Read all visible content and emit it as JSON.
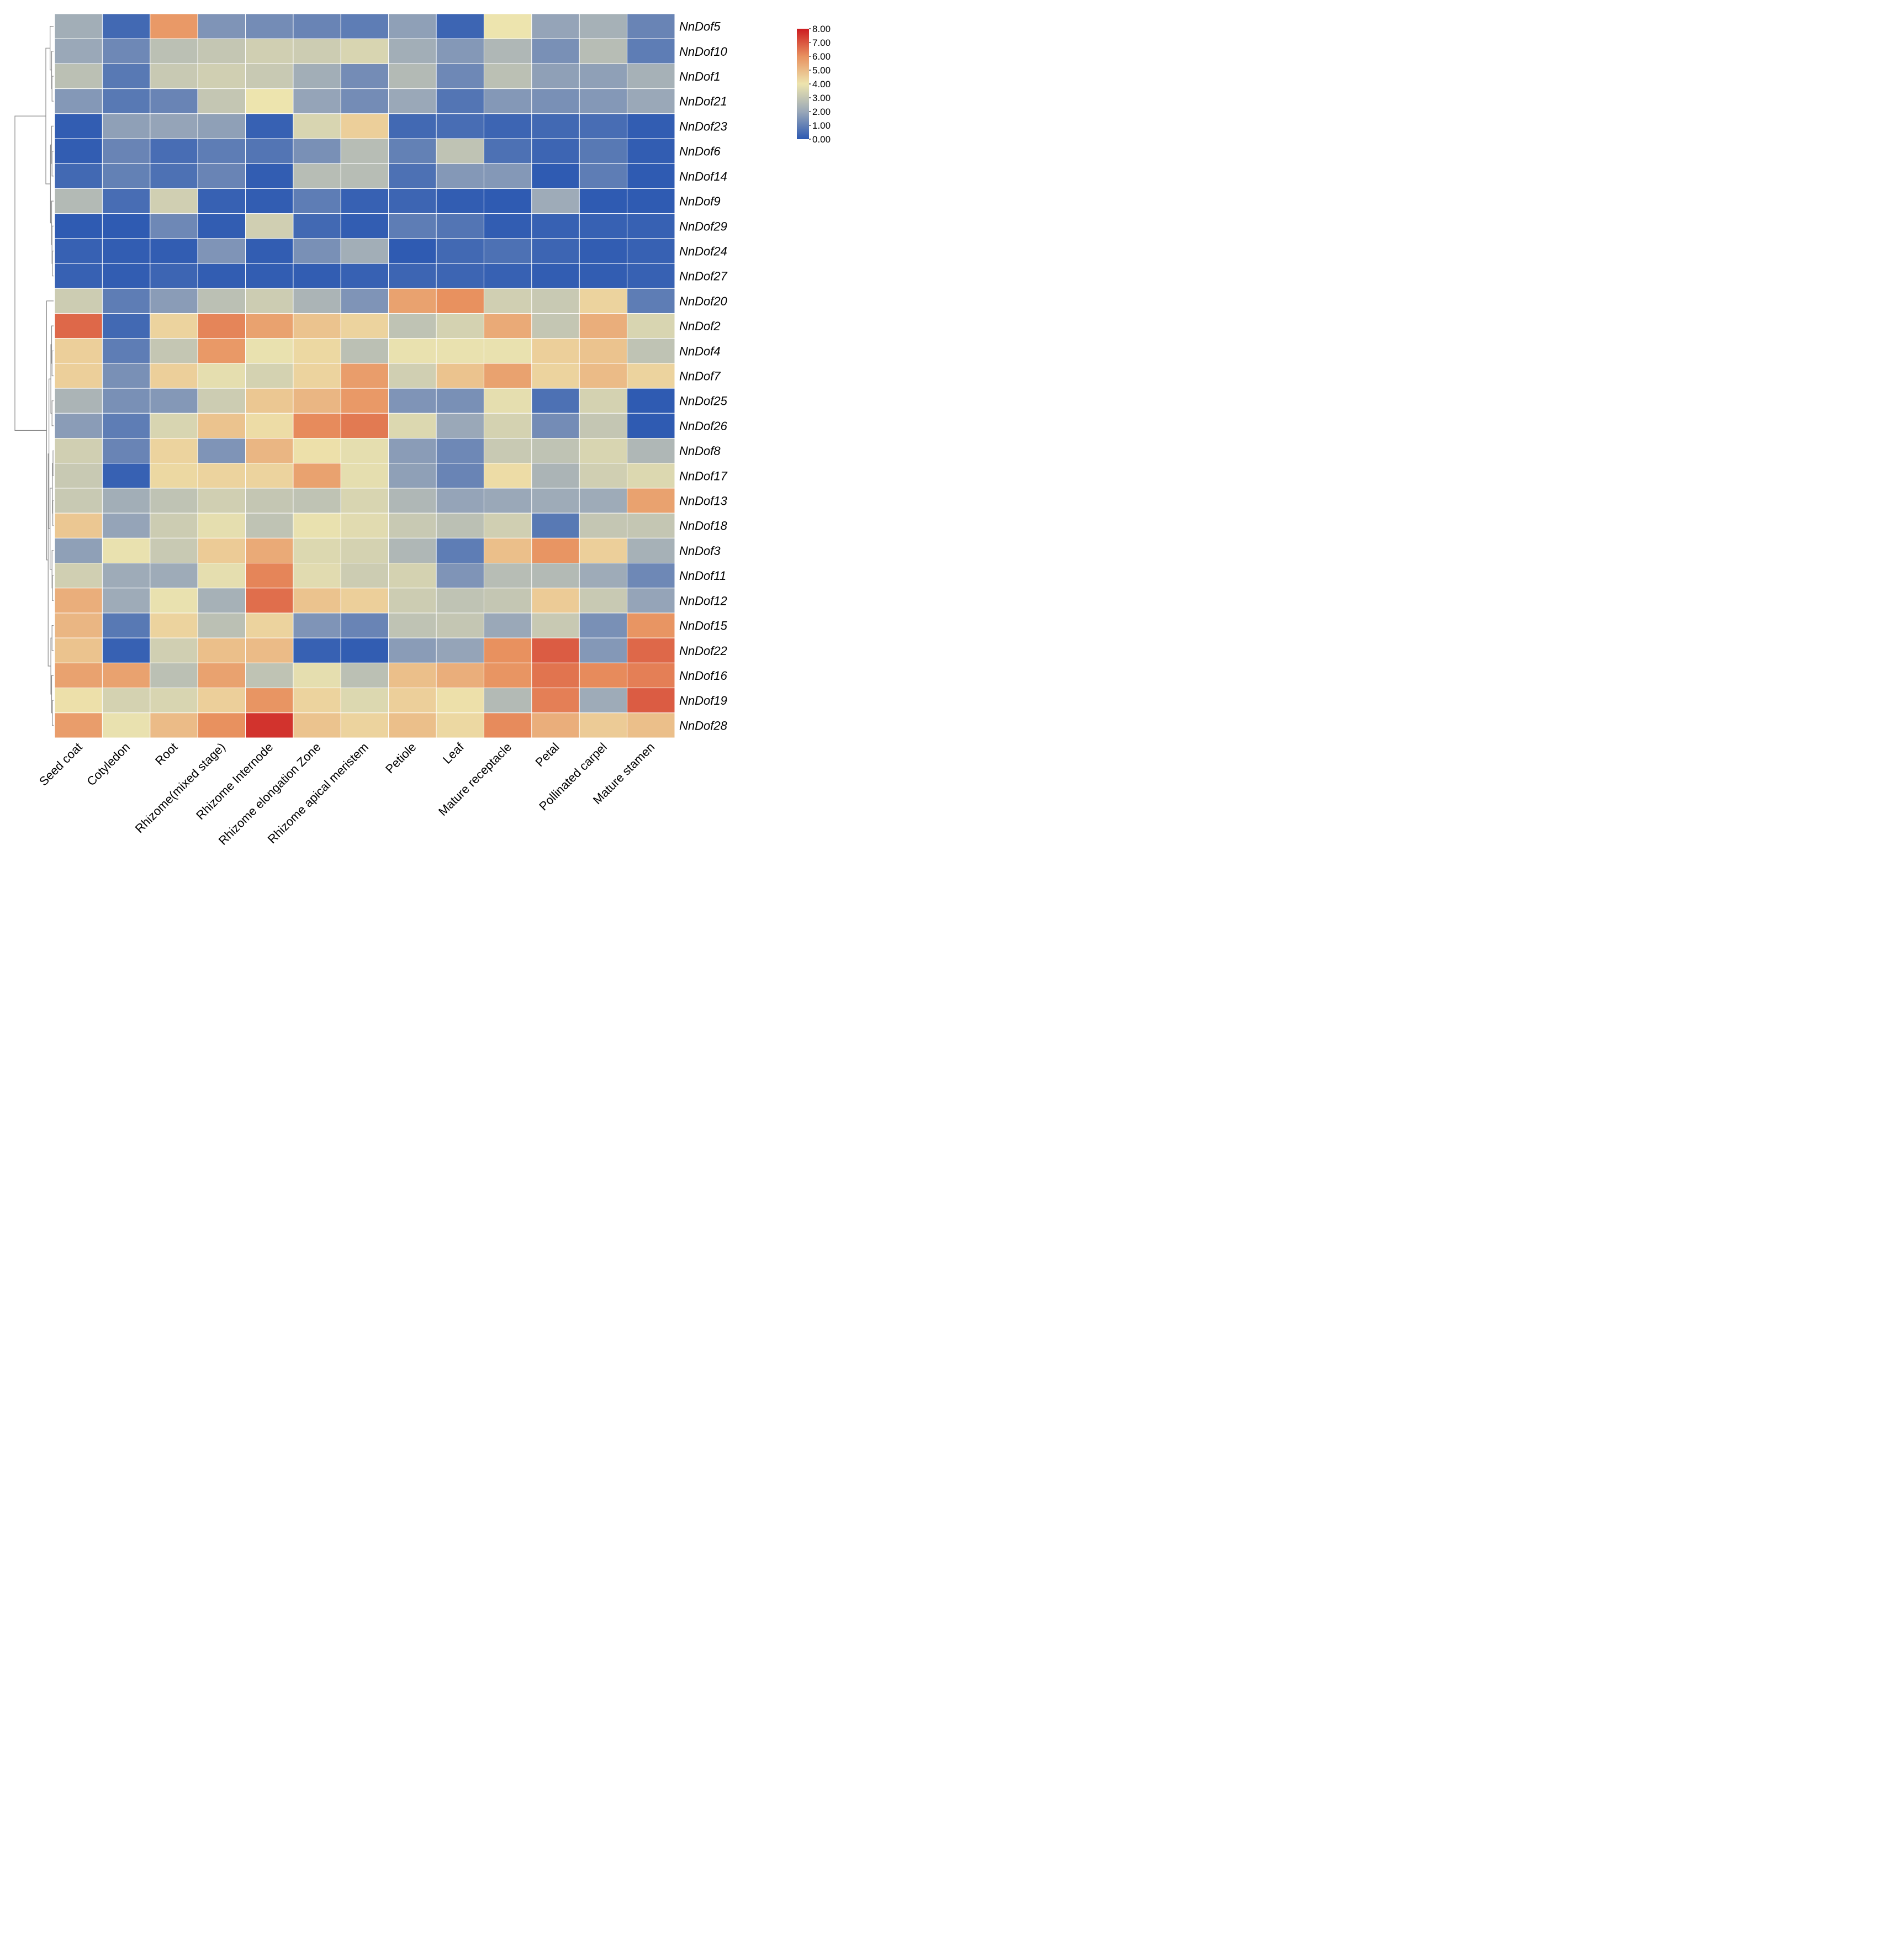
{
  "chart_data": {
    "type": "heatmap",
    "title": "",
    "columns": [
      "Seed coat",
      "Cotyledon",
      "Root",
      "Rhizome(mixed stage)",
      "Rhizome Internode",
      "Rhizome elongation Zone",
      "Rhizome apical meristem",
      "Petiole",
      "Leaf",
      "Mature receptacle",
      "Petal",
      "Pollinated carpel",
      "Mature stamen"
    ],
    "rows": [
      "NnDof5",
      "NnDof10",
      "NnDof1",
      "NnDof21",
      "NnDof23",
      "NnDof6",
      "NnDof14",
      "NnDof9",
      "NnDof29",
      "NnDof24",
      "NnDof27",
      "NnDof20",
      "NnDof2",
      "NnDof4",
      "NnDof7",
      "NnDof25",
      "NnDof26",
      "NnDof8",
      "NnDof17",
      "NnDof13",
      "NnDof18",
      "NnDof3",
      "NnDof11",
      "NnDof12",
      "NnDof15",
      "NnDof22",
      "NnDof16",
      "NnDof19",
      "NnDof28"
    ],
    "values": [
      [
        2.2,
        0.4,
        5.8,
        1.5,
        1.3,
        1.1,
        0.9,
        1.8,
        0.3,
        4.0,
        1.9,
        2.3,
        1.1
      ],
      [
        2.0,
        1.2,
        2.8,
        3.0,
        3.3,
        3.2,
        3.5,
        2.2,
        1.6,
        2.5,
        1.4,
        2.7,
        0.9
      ],
      [
        2.8,
        0.8,
        3.1,
        3.3,
        3.1,
        2.2,
        1.3,
        2.6,
        1.2,
        2.8,
        1.8,
        1.8,
        2.3
      ],
      [
        1.6,
        0.8,
        1.1,
        3.0,
        4.0,
        1.9,
        1.3,
        2.0,
        0.7,
        1.6,
        1.4,
        1.6,
        2.0
      ],
      [
        0.1,
        1.8,
        1.9,
        1.8,
        0.2,
        3.5,
        4.5,
        0.4,
        0.5,
        0.3,
        0.4,
        0.5,
        0.1
      ],
      [
        0.1,
        1.1,
        0.5,
        0.9,
        0.7,
        1.4,
        2.7,
        1.0,
        2.9,
        0.6,
        0.3,
        0.8,
        0.1
      ],
      [
        0.4,
        1.0,
        0.6,
        1.1,
        0.1,
        2.7,
        2.7,
        0.6,
        1.6,
        1.6,
        0.05,
        0.9,
        0.05
      ],
      [
        2.6,
        0.5,
        3.3,
        0.2,
        0.1,
        0.9,
        0.2,
        0.3,
        0.1,
        0.05,
        2.1,
        0.05,
        0.05
      ],
      [
        0.05,
        0.05,
        1.2,
        0.1,
        3.3,
        0.4,
        0.1,
        0.9,
        0.7,
        0.1,
        0.2,
        0.2,
        0.2
      ],
      [
        0.2,
        0.1,
        0.1,
        1.5,
        0.1,
        1.4,
        2.2,
        0.05,
        0.4,
        0.6,
        0.3,
        0.1,
        0.2
      ],
      [
        0.2,
        0.1,
        0.3,
        0.1,
        0.1,
        0.1,
        0.2,
        0.3,
        0.3,
        0.2,
        0.1,
        0.1,
        0.2
      ],
      [
        3.2,
        0.9,
        1.7,
        2.8,
        3.2,
        2.4,
        1.5,
        5.6,
        6.0,
        3.3,
        3.1,
        4.4,
        0.9
      ],
      [
        6.7,
        0.4,
        4.4,
        6.2,
        5.6,
        4.8,
        4.4,
        2.9,
        3.4,
        5.4,
        3.0,
        5.3,
        3.5
      ],
      [
        4.5,
        0.9,
        3.0,
        5.8,
        3.9,
        4.3,
        2.8,
        3.9,
        3.9,
        3.9,
        4.5,
        4.8,
        2.9
      ],
      [
        4.5,
        1.4,
        4.5,
        3.8,
        3.4,
        4.4,
        5.7,
        3.3,
        4.8,
        5.6,
        4.4,
        5.0,
        4.4
      ],
      [
        2.4,
        1.4,
        1.6,
        3.2,
        4.7,
        5.1,
        5.8,
        1.5,
        1.4,
        3.8,
        0.6,
        3.4,
        0.05
      ],
      [
        1.7,
        0.9,
        3.5,
        4.8,
        4.2,
        6.1,
        6.4,
        3.6,
        2.0,
        3.4,
        1.3,
        3.0,
        0.05
      ],
      [
        3.3,
        1.1,
        4.4,
        1.5,
        5.1,
        4.1,
        3.8,
        1.7,
        1.2,
        3.1,
        2.9,
        3.5,
        2.5
      ],
      [
        3.1,
        0.2,
        4.3,
        4.4,
        4.4,
        5.6,
        3.8,
        1.8,
        1.1,
        4.2,
        2.4,
        3.3,
        3.6
      ],
      [
        3.1,
        2.2,
        2.9,
        3.3,
        3.0,
        2.9,
        3.5,
        2.5,
        1.9,
        2.0,
        2.1,
        2.1,
        5.6
      ],
      [
        4.7,
        1.9,
        3.2,
        3.8,
        2.9,
        3.9,
        3.7,
        3.1,
        2.8,
        3.3,
        0.8,
        3.0,
        3.0
      ],
      [
        1.8,
        3.9,
        3.1,
        4.6,
        5.4,
        3.6,
        3.4,
        2.5,
        0.9,
        4.9,
        5.9,
        4.5,
        2.3
      ],
      [
        3.3,
        2.1,
        2.1,
        3.8,
        6.2,
        3.7,
        3.2,
        3.4,
        1.5,
        2.7,
        2.6,
        2.1,
        1.2
      ],
      [
        5.3,
        2.1,
        3.9,
        2.3,
        6.6,
        4.8,
        4.5,
        3.2,
        2.9,
        3.0,
        4.6,
        3.1,
        1.9
      ],
      [
        5.1,
        0.8,
        4.4,
        2.8,
        4.4,
        1.5,
        1.1,
        2.9,
        3.0,
        2.0,
        3.1,
        1.4,
        5.9
      ],
      [
        4.8,
        0.2,
        3.3,
        4.9,
        5.0,
        0.2,
        0.1,
        1.7,
        1.9,
        6.0,
        6.9,
        1.6,
        6.7
      ],
      [
        5.6,
        5.6,
        2.8,
        5.6,
        2.9,
        3.8,
        2.8,
        4.9,
        5.3,
        5.9,
        6.5,
        6.1,
        6.3
      ],
      [
        4.1,
        3.4,
        3.5,
        4.5,
        5.9,
        4.4,
        3.6,
        4.5,
        4.1,
        2.6,
        6.3,
        2.1,
        6.9
      ],
      [
        5.7,
        3.9,
        5.0,
        6.0,
        7.6,
        4.8,
        4.4,
        4.9,
        4.3,
        6.1,
        5.3,
        4.6,
        4.9
      ]
    ],
    "color_scale": {
      "min": 0.0,
      "max": 8.0,
      "colors": [
        "#2c59b2",
        "#9aa8b8",
        "#ede4ae",
        "#e8915f",
        "#cc1c20"
      ],
      "ticks": [
        "0.00",
        "1.00",
        "2.00",
        "3.00",
        "4.00",
        "5.00",
        "6.00",
        "7.00",
        "8.00"
      ]
    },
    "row_dendrogram": true,
    "legend_position": "top-right"
  }
}
